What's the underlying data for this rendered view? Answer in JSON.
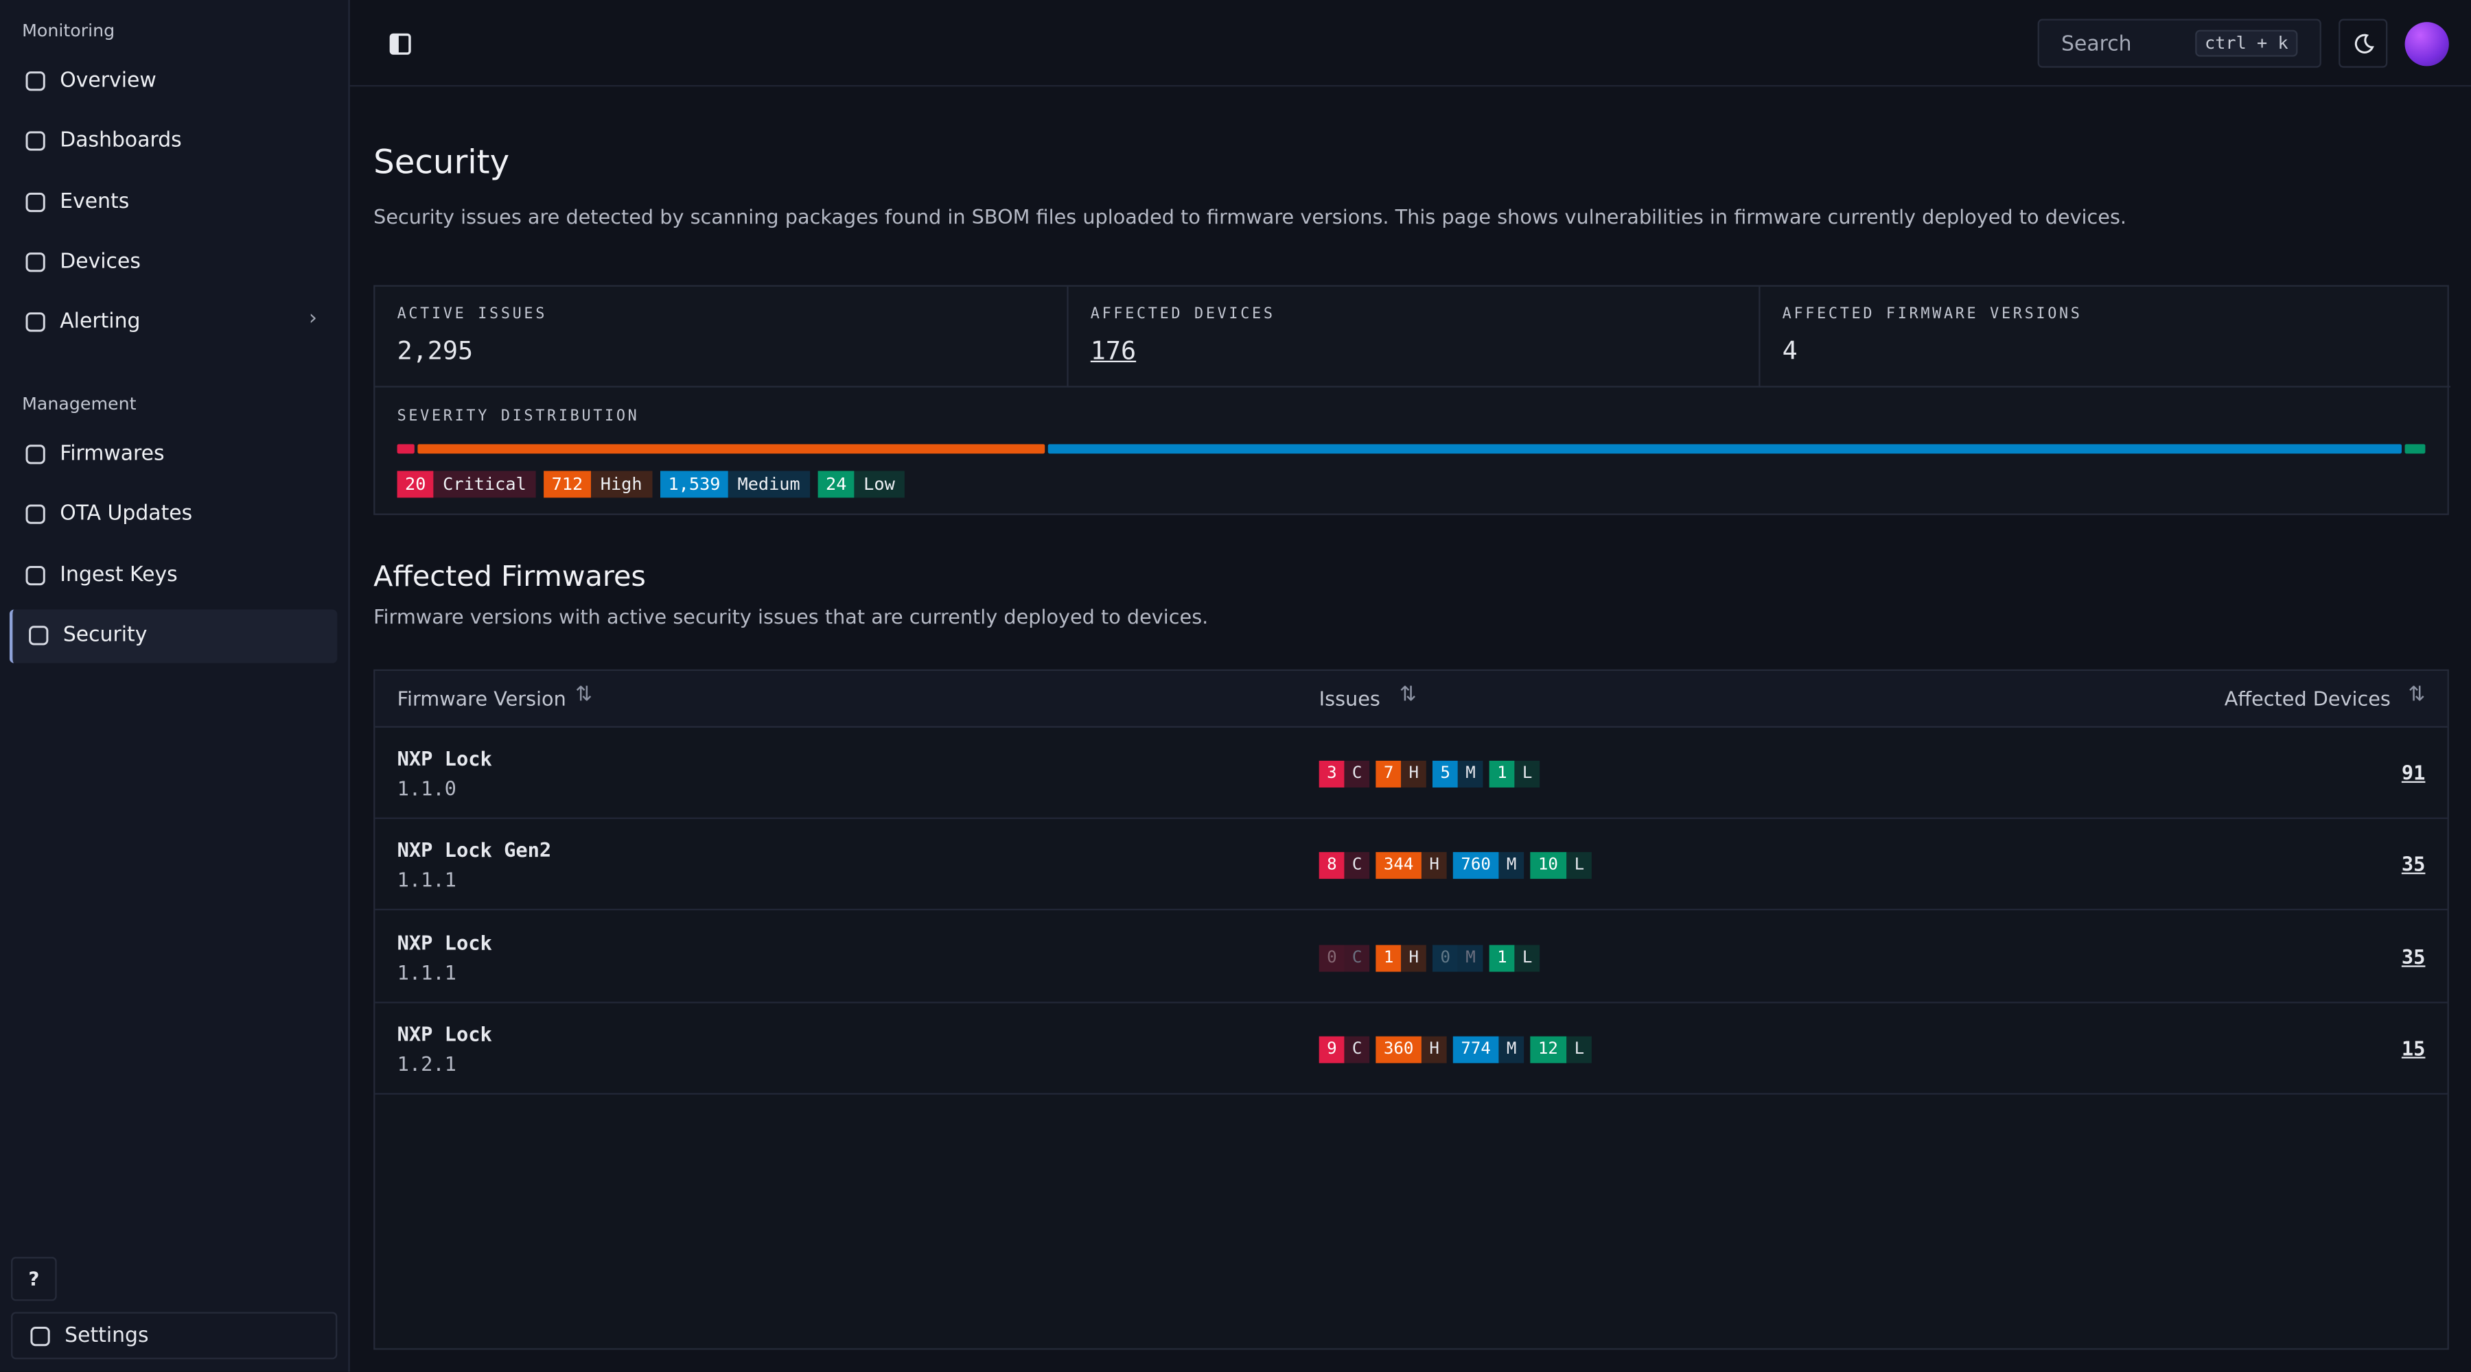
{
  "sidebar": {
    "sections": [
      {
        "title": "Monitoring",
        "items": [
          "Overview",
          "Dashboards",
          "Events",
          "Devices",
          "Alerting"
        ]
      },
      {
        "title": "Management",
        "items": [
          "Firmwares",
          "OTA Updates",
          "Ingest Keys",
          "Security"
        ]
      }
    ],
    "help": "?",
    "settings": "Settings"
  },
  "topbar": {
    "search": "Search",
    "shortcut": "ctrl + k"
  },
  "header": {
    "title": "Security",
    "description": "Security issues are detected by scanning packages found in SBOM files uploaded to firmware versions. This page shows vulnerabilities in firmware currently deployed to devices."
  },
  "stats": [
    {
      "label": "ACTIVE ISSUES",
      "value": "2,295"
    },
    {
      "label": "AFFECTED DEVICES",
      "value": 176
    },
    {
      "label": "AFFECTED FIRMWARE VERSIONS",
      "value": 4
    }
  ],
  "severity": {
    "label": "SEVERITY DISTRIBUTION",
    "levels": [
      {
        "count": 20,
        "name": "Critical",
        "letter": "C",
        "color": "#e11d48"
      },
      {
        "count": 712,
        "name": "High",
        "letter": "H",
        "color": "#ea580c"
      },
      {
        "count": {
          "value": 1539,
          "label": "1,539"
        },
        "name": "Medium",
        "letter": "M",
        "color": "#0284c7"
      },
      {
        "count": 24,
        "name": "Low",
        "letter": "L",
        "color": "#059669"
      }
    ]
  },
  "section": {
    "title": "Affected Firmwares",
    "description": "Firmware versions with active security issues that are currently deployed to devices."
  },
  "table": {
    "columns": [
      "Firmware Version",
      "Issues",
      "Affected Devices"
    ],
    "rows": [
      {
        "name": "NXP Lock",
        "version": "1.1.0",
        "issues": [
          3,
          7,
          5,
          1
        ],
        "devices": 91
      },
      {
        "name": "NXP Lock Gen2",
        "version": "1.1.1",
        "issues": [
          8,
          344,
          760,
          10
        ],
        "devices": 35
      },
      {
        "name": "NXP Lock",
        "version": "1.1.1",
        "issues": [
          0,
          1,
          0,
          1
        ],
        "devices": 35
      },
      {
        "name": "NXP Lock",
        "version": "1.2.1",
        "issues": [
          9,
          360,
          774,
          12
        ],
        "devices": 15
      }
    ]
  }
}
